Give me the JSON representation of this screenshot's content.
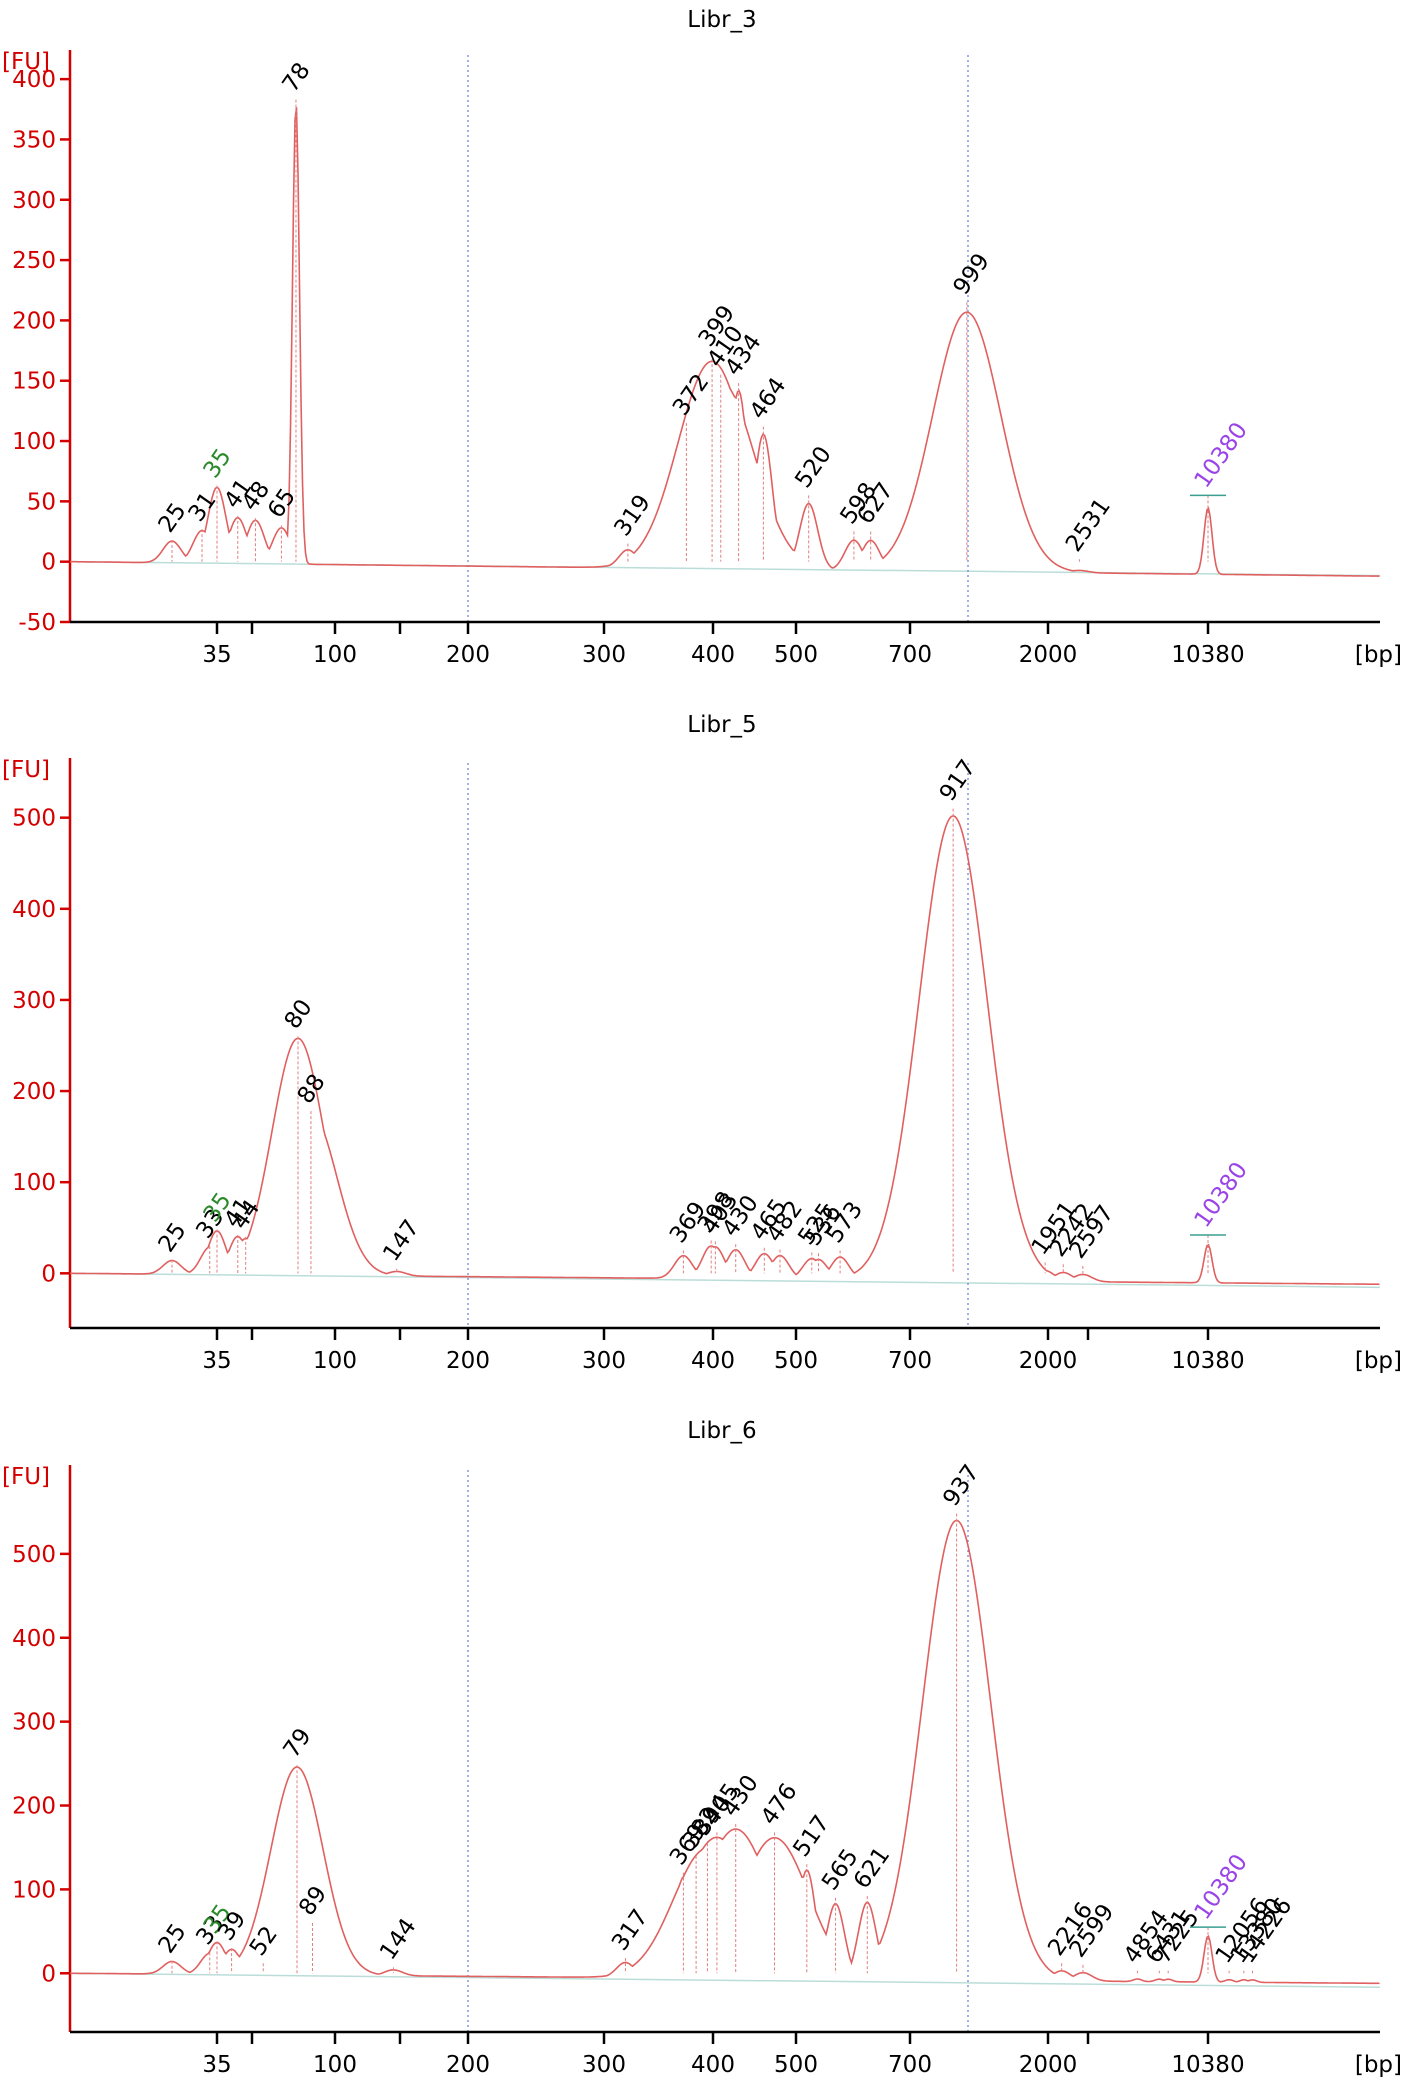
{
  "colors": {
    "axis": "#d40000",
    "trace": "#e06060",
    "marker_lower": "#2a8a2a",
    "marker_upper": "#9a44e8",
    "baseline": "#3a9f8f"
  },
  "chart_data": [
    {
      "type": "line",
      "title": "Libr_3",
      "ylabel": "[FU]",
      "xlabel": "[bp]",
      "yticks": [
        400,
        350,
        300,
        250,
        200,
        150,
        100,
        50,
        0,
        -50
      ],
      "ylim": [
        -50,
        420
      ],
      "xticks": [
        "35",
        "100",
        "200",
        "300",
        "400",
        "500",
        "700",
        "2000",
        "10380"
      ],
      "peaks": [
        {
          "label": "25",
          "x": "25",
          "y": 18
        },
        {
          "label": "31",
          "x": "31",
          "y": 27
        },
        {
          "label": "35",
          "x": "35",
          "y": 63,
          "marker": "lower"
        },
        {
          "label": "41",
          "x": "41",
          "y": 38
        },
        {
          "label": "48",
          "x": "48",
          "y": 36
        },
        {
          "label": "65",
          "x": "65",
          "y": 30
        },
        {
          "label": "78",
          "x": "78",
          "y": 383
        },
        {
          "label": "319",
          "x": "319",
          "y": 15
        },
        {
          "label": "372",
          "x": "372",
          "y": 115
        },
        {
          "label": "399",
          "x": "399",
          "y": 172
        },
        {
          "label": "410",
          "x": "410",
          "y": 155
        },
        {
          "label": "434",
          "x": "434",
          "y": 148
        },
        {
          "label": "464",
          "x": "464",
          "y": 112
        },
        {
          "label": "520",
          "x": "520",
          "y": 55
        },
        {
          "label": "598",
          "x": "598",
          "y": 25
        },
        {
          "label": "627",
          "x": "627",
          "y": 25
        },
        {
          "label": "999",
          "x": "999",
          "y": 215
        },
        {
          "label": "2531",
          "x": "2531",
          "y": 2
        },
        {
          "label": "10380",
          "x": "10380",
          "y": 55,
          "marker": "upper"
        }
      ]
    },
    {
      "type": "line",
      "title": "Libr_5",
      "ylabel": "[FU]",
      "xlabel": "[bp]",
      "yticks": [
        500,
        400,
        300,
        200,
        100,
        0
      ],
      "ylim": [
        -60,
        560
      ],
      "xticks": [
        "35",
        "100",
        "200",
        "300",
        "400",
        "500",
        "700",
        "2000",
        "10380"
      ],
      "peaks": [
        {
          "label": "25",
          "x": "25",
          "y": 15
        },
        {
          "label": "33",
          "x": "33",
          "y": 30
        },
        {
          "label": "35",
          "x": "35",
          "y": 48,
          "marker": "lower"
        },
        {
          "label": "41",
          "x": "41",
          "y": 42
        },
        {
          "label": "44",
          "x": "44",
          "y": 40
        },
        {
          "label": "80",
          "x": "80",
          "y": 260
        },
        {
          "label": "88",
          "x": "88",
          "y": 178
        },
        {
          "label": "147",
          "x": "147",
          "y": 5
        },
        {
          "label": "369",
          "x": "369",
          "y": 25
        },
        {
          "label": "398",
          "x": "398",
          "y": 36
        },
        {
          "label": "403",
          "x": "403",
          "y": 35
        },
        {
          "label": "430",
          "x": "430",
          "y": 32
        },
        {
          "label": "465",
          "x": "465",
          "y": 28
        },
        {
          "label": "482",
          "x": "482",
          "y": 26
        },
        {
          "label": "525",
          "x": "525",
          "y": 23
        },
        {
          "label": "536",
          "x": "536",
          "y": 22
        },
        {
          "label": "573",
          "x": "573",
          "y": 25
        },
        {
          "label": "917",
          "x": "917",
          "y": 510
        },
        {
          "label": "1951",
          "x": "1951",
          "y": 12
        },
        {
          "label": "2242",
          "x": "2242",
          "y": 10
        },
        {
          "label": "2597",
          "x": "2597",
          "y": 8
        },
        {
          "label": "10380",
          "x": "10380",
          "y": 42,
          "marker": "upper"
        }
      ]
    },
    {
      "type": "line",
      "title": "Libr_6",
      "ylabel": "[FU]",
      "xlabel": "[bp]",
      "yticks": [
        500,
        400,
        300,
        200,
        100,
        0
      ],
      "ylim": [
        -70,
        600
      ],
      "xticks": [
        "35",
        "100",
        "200",
        "300",
        "400",
        "500",
        "700",
        "2000",
        "10380"
      ],
      "peaks": [
        {
          "label": "25",
          "x": "25",
          "y": 15
        },
        {
          "label": "33",
          "x": "33",
          "y": 25
        },
        {
          "label": "35",
          "x": "35",
          "y": 38,
          "marker": "lower"
        },
        {
          "label": "39",
          "x": "39",
          "y": 30
        },
        {
          "label": "52",
          "x": "52",
          "y": 12
        },
        {
          "label": "79",
          "x": "79",
          "y": 248
        },
        {
          "label": "89",
          "x": "89",
          "y": 60
        },
        {
          "label": "144",
          "x": "144",
          "y": 7
        },
        {
          "label": "317",
          "x": "317",
          "y": 18
        },
        {
          "label": "369",
          "x": "369",
          "y": 120
        },
        {
          "label": "382",
          "x": "382",
          "y": 140
        },
        {
          "label": "394",
          "x": "394",
          "y": 155
        },
        {
          "label": "405",
          "x": "405",
          "y": 168
        },
        {
          "label": "430",
          "x": "430",
          "y": 178
        },
        {
          "label": "476",
          "x": "476",
          "y": 168
        },
        {
          "label": "517",
          "x": "517",
          "y": 130
        },
        {
          "label": "565",
          "x": "565",
          "y": 90
        },
        {
          "label": "621",
          "x": "621",
          "y": 92
        },
        {
          "label": "937",
          "x": "937",
          "y": 548
        },
        {
          "label": "2216",
          "x": "2216",
          "y": 12
        },
        {
          "label": "2599",
          "x": "2599",
          "y": 10
        },
        {
          "label": "4854",
          "x": "4854",
          "y": 3
        },
        {
          "label": "6431",
          "x": "6431",
          "y": 3
        },
        {
          "label": "7225",
          "x": "7225",
          "y": 3
        },
        {
          "label": "10380",
          "x": "10380",
          "y": 55,
          "marker": "upper"
        },
        {
          "label": "12056",
          "x": "12056",
          "y": 3
        },
        {
          "label": "13380",
          "x": "13380",
          "y": 3
        },
        {
          "label": "14226",
          "x": "14226",
          "y": 3
        }
      ]
    }
  ]
}
